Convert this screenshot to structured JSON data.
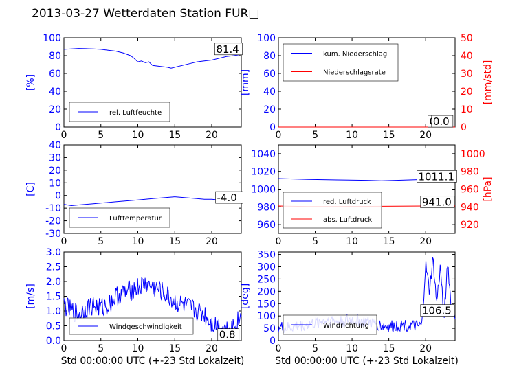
{
  "title": "2013-03-27 Wetterdaten Station FUR□",
  "colors": {
    "primary": "#0000ff",
    "secondary": "#ff0000",
    "light": "#8080ff",
    "axis": "#000000"
  },
  "chart_data": [
    {
      "type": "line",
      "id": "humidity",
      "ylabel": "[%]",
      "xlabel": "",
      "ylim": [
        0,
        100
      ],
      "xlim": [
        0,
        24
      ],
      "yticks": [
        0,
        20,
        40,
        60,
        80,
        100
      ],
      "xticks": [
        0,
        5,
        10,
        15,
        20
      ],
      "legend": {
        "placement": "lower-left",
        "entries": [
          "rel. Luftfeuchte"
        ]
      },
      "annotation": "81.4",
      "series": [
        {
          "name": "rel. Luftfeuchte",
          "axis": "left",
          "x": [
            0,
            1,
            2,
            3,
            4,
            5,
            6,
            7,
            8,
            9,
            9.5,
            10,
            10.5,
            11,
            11.5,
            12,
            13,
            14,
            14.5,
            15,
            16,
            17,
            18,
            19,
            20,
            21,
            22,
            23,
            24
          ],
          "y": [
            87,
            87.5,
            88,
            87.8,
            87.5,
            87,
            86,
            85,
            83,
            80,
            77,
            73,
            74,
            72,
            73,
            69,
            68,
            67,
            66,
            67,
            69,
            71,
            73,
            74,
            75,
            77,
            79,
            80,
            81.4
          ]
        }
      ]
    },
    {
      "type": "line",
      "id": "precip",
      "ylabel": "[mm]",
      "y2label": "[mm/std]",
      "xlabel": "",
      "ylim": [
        0,
        100
      ],
      "y2lim": [
        0,
        50
      ],
      "xlim": [
        0,
        24
      ],
      "yticks": [
        0,
        20,
        40,
        60,
        80,
        100
      ],
      "y2ticks": [
        0,
        10,
        20,
        30,
        40,
        50
      ],
      "xticks": [
        0,
        5,
        10,
        15,
        20
      ],
      "legend": {
        "placement": "upper-left",
        "entries": [
          "kum. Niederschlag",
          "Niederschlagsrate"
        ]
      },
      "annotation": "0.0",
      "annotation2": "0.0",
      "series": [
        {
          "name": "kum. Niederschlag",
          "axis": "left",
          "x": [
            0,
            24
          ],
          "y": [
            0,
            0
          ]
        },
        {
          "name": "Niederschlagsrate",
          "axis": "right",
          "x": [
            0,
            24
          ],
          "y": [
            0,
            0
          ]
        }
      ]
    },
    {
      "type": "line",
      "id": "temp",
      "ylabel": "[C]",
      "xlabel": "",
      "ylim": [
        -30,
        40
      ],
      "xlim": [
        0,
        24
      ],
      "yticks": [
        -30,
        -20,
        -10,
        0,
        10,
        20,
        30,
        40
      ],
      "xticks": [
        0,
        5,
        10,
        15,
        20
      ],
      "legend": {
        "placement": "lower-left",
        "entries": [
          "Lufttemperatur"
        ]
      },
      "annotation": "-4.0",
      "series": [
        {
          "name": "Lufttemperatur",
          "axis": "left",
          "x": [
            0,
            1,
            2,
            3,
            4,
            5,
            6,
            7,
            8,
            9,
            10,
            11,
            12,
            13,
            14,
            15,
            16,
            17,
            18,
            19,
            20,
            21,
            22,
            23,
            24
          ],
          "y": [
            -7,
            -8,
            -7.5,
            -7,
            -6.5,
            -6,
            -5.5,
            -5,
            -4.5,
            -4,
            -3.5,
            -3,
            -2.5,
            -2,
            -1.5,
            -1,
            -1.5,
            -2,
            -2.5,
            -3,
            -3,
            -3.5,
            -3.8,
            -4,
            -4
          ]
        }
      ]
    },
    {
      "type": "line",
      "id": "pressure",
      "ylabel": "",
      "y2label": "[hPa]",
      "xlabel": "",
      "ylim": [
        950,
        1050
      ],
      "y2lim": [
        910,
        1010
      ],
      "xlim": [
        0,
        24
      ],
      "yticks": [
        960,
        980,
        1000,
        1020,
        1040
      ],
      "y2ticks": [
        920,
        940,
        960,
        980,
        1000
      ],
      "xticks": [
        0,
        5,
        10,
        15,
        20
      ],
      "legend": {
        "placement": "lower-left",
        "entries": [
          "red. Luftdruck",
          "abs. Luftdruck"
        ]
      },
      "annotation": "1011.1",
      "annotation2": "941.0",
      "series": [
        {
          "name": "red. Luftdruck",
          "axis": "left",
          "x": [
            0,
            4,
            8,
            12,
            14,
            16,
            20,
            24
          ],
          "y": [
            1012,
            1011,
            1010.5,
            1010,
            1009.5,
            1010,
            1011,
            1011.1
          ]
        },
        {
          "name": "abs. Luftdruck",
          "axis": "right",
          "x": [
            0,
            4,
            8,
            12,
            16,
            20,
            24
          ],
          "y": [
            941,
            940.5,
            940.5,
            940.6,
            940.8,
            941,
            941
          ]
        }
      ]
    },
    {
      "type": "line",
      "id": "wind",
      "ylabel": "[m/s]",
      "xlabel": "Std 00:00:00 UTC (+-23 Std Lokalzeit)",
      "ylim": [
        0,
        3
      ],
      "xlim": [
        0,
        24
      ],
      "yticks": [
        0,
        0.5,
        1,
        1.5,
        2,
        2.5,
        3
      ],
      "yticklabels": [
        "0.0",
        "0.5",
        "1.0",
        "1.5",
        "2.0",
        "2.5",
        "3.0"
      ],
      "xticks": [
        0,
        5,
        10,
        15,
        20
      ],
      "legend": {
        "placement": "lower-left",
        "entries": [
          "Windgeschwindigkeit"
        ]
      },
      "annotation": "0.8",
      "series": [
        {
          "name": "Windgeschwindigkeit",
          "axis": "left",
          "noise": 0.35,
          "x": [
            0,
            1,
            2,
            3,
            4,
            5,
            6,
            7,
            8,
            9,
            10,
            11,
            12,
            13,
            14,
            15,
            16,
            17,
            18,
            19,
            20,
            21,
            22,
            23,
            24
          ],
          "y": [
            1.2,
            1.0,
            0.9,
            1.1,
            1.2,
            1.1,
            1.2,
            1.5,
            1.6,
            1.7,
            1.8,
            1.9,
            1.8,
            1.7,
            1.5,
            1.3,
            1.2,
            1.1,
            1.0,
            0.9,
            0.6,
            0.5,
            0.4,
            0.5,
            0.8
          ]
        }
      ]
    },
    {
      "type": "line",
      "id": "winddir",
      "ylabel": "[deg]",
      "xlabel": "Std 00:00:00 UTC (+-23 Std Lokalzeit)",
      "ylim": [
        0,
        360
      ],
      "xlim": [
        0,
        24
      ],
      "yticks": [
        0,
        50,
        100,
        150,
        200,
        250,
        300,
        350
      ],
      "xticks": [
        0,
        5,
        10,
        15,
        20
      ],
      "legend": {
        "placement": "lower-left",
        "entries": [
          "Windrichtung"
        ]
      },
      "annotation": "106.5",
      "series": [
        {
          "name": "Windrichtung",
          "axis": "left",
          "noise": 25,
          "x": [
            0,
            1,
            2,
            3,
            4,
            5,
            6,
            7,
            8,
            9,
            10,
            11,
            12,
            13,
            14,
            15,
            16,
            17,
            18,
            19,
            19.5,
            20,
            20.5,
            21,
            21.5,
            22,
            22.5,
            23,
            23.5,
            24
          ],
          "y": [
            55,
            50,
            55,
            60,
            65,
            70,
            80,
            85,
            75,
            80,
            85,
            80,
            75,
            70,
            60,
            55,
            60,
            65,
            60,
            55,
            60,
            310,
            200,
            330,
            150,
            300,
            100,
            320,
            120,
            106.5
          ]
        }
      ]
    }
  ]
}
